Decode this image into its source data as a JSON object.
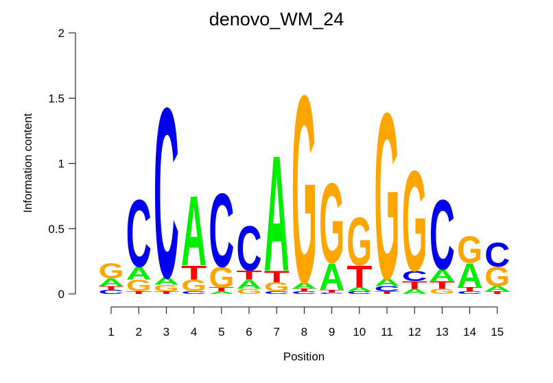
{
  "chart_data": {
    "type": "sequence_logo",
    "title": "denovo_WM_24",
    "xlabel": "Position",
    "ylabel": "Information content",
    "ylim": [
      0,
      2
    ],
    "yticks": [
      {
        "value": 0,
        "label": "0"
      },
      {
        "value": 0.5,
        "label": "0.5"
      },
      {
        "value": 1,
        "label": "1"
      },
      {
        "value": 1.5,
        "label": "1.5"
      },
      {
        "value": 2,
        "label": "2"
      }
    ],
    "positions": [
      "1",
      "2",
      "3",
      "4",
      "5",
      "6",
      "7",
      "8",
      "9",
      "10",
      "11",
      "12",
      "13",
      "14",
      "15"
    ],
    "colors": {
      "A": "#00ee00",
      "C": "#0000ee",
      "G": "#ffa500",
      "T": "#ff0000"
    },
    "columns": [
      [
        {
          "letter": "C",
          "height": 0.03
        },
        {
          "letter": "T",
          "height": 0.03
        },
        {
          "letter": "A",
          "height": 0.06
        },
        {
          "letter": "G",
          "height": 0.12
        }
      ],
      [
        {
          "letter": "T",
          "height": 0.02
        },
        {
          "letter": "G",
          "height": 0.09
        },
        {
          "letter": "A",
          "height": 0.1
        },
        {
          "letter": "C",
          "height": 0.53
        }
      ],
      [
        {
          "letter": "T",
          "height": 0.02
        },
        {
          "letter": "G",
          "height": 0.05
        },
        {
          "letter": "A",
          "height": 0.06
        },
        {
          "letter": "C",
          "height": 1.34
        }
      ],
      [
        {
          "letter": "C",
          "height": 0.02
        },
        {
          "letter": "G",
          "height": 0.09
        },
        {
          "letter": "T",
          "height": 0.11
        },
        {
          "letter": "A",
          "height": 0.55
        }
      ],
      [
        {
          "letter": "A",
          "height": 0.02
        },
        {
          "letter": "T",
          "height": 0.03
        },
        {
          "letter": "G",
          "height": 0.16
        },
        {
          "letter": "C",
          "height": 0.58
        }
      ],
      [
        {
          "letter": "G",
          "height": 0.04
        },
        {
          "letter": "A",
          "height": 0.07
        },
        {
          "letter": "T",
          "height": 0.07
        },
        {
          "letter": "C",
          "height": 0.35
        }
      ],
      [
        {
          "letter": "C",
          "height": 0.02
        },
        {
          "letter": "G",
          "height": 0.07
        },
        {
          "letter": "T",
          "height": 0.09
        },
        {
          "letter": "A",
          "height": 0.91
        }
      ],
      [
        {
          "letter": "C",
          "height": 0.02
        },
        {
          "letter": "T",
          "height": 0.02
        },
        {
          "letter": "A",
          "height": 0.05
        },
        {
          "letter": "G",
          "height": 1.48
        }
      ],
      [
        {
          "letter": "C",
          "height": 0.01
        },
        {
          "letter": "T",
          "height": 0.02
        },
        {
          "letter": "A",
          "height": 0.21
        },
        {
          "letter": "G",
          "height": 0.63
        }
      ],
      [
        {
          "letter": "C",
          "height": 0.02
        },
        {
          "letter": "A",
          "height": 0.03
        },
        {
          "letter": "T",
          "height": 0.17
        },
        {
          "letter": "G",
          "height": 0.38
        }
      ],
      [
        {
          "letter": "T",
          "height": 0.02
        },
        {
          "letter": "C",
          "height": 0.04
        },
        {
          "letter": "A",
          "height": 0.06
        },
        {
          "letter": "G",
          "height": 1.31
        }
      ],
      [
        {
          "letter": "A",
          "height": 0.04
        },
        {
          "letter": "T",
          "height": 0.06
        },
        {
          "letter": "C",
          "height": 0.08
        },
        {
          "letter": "G",
          "height": 0.79
        }
      ],
      [
        {
          "letter": "G",
          "height": 0.04
        },
        {
          "letter": "T",
          "height": 0.06
        },
        {
          "letter": "A",
          "height": 0.09
        },
        {
          "letter": "C",
          "height": 0.55
        }
      ],
      [
        {
          "letter": "C",
          "height": 0.02
        },
        {
          "letter": "T",
          "height": 0.03
        },
        {
          "letter": "A",
          "height": 0.19
        },
        {
          "letter": "G",
          "height": 0.21
        }
      ],
      [
        {
          "letter": "T",
          "height": 0.02
        },
        {
          "letter": "A",
          "height": 0.04
        },
        {
          "letter": "G",
          "height": 0.15
        },
        {
          "letter": "C",
          "height": 0.19
        }
      ]
    ]
  }
}
